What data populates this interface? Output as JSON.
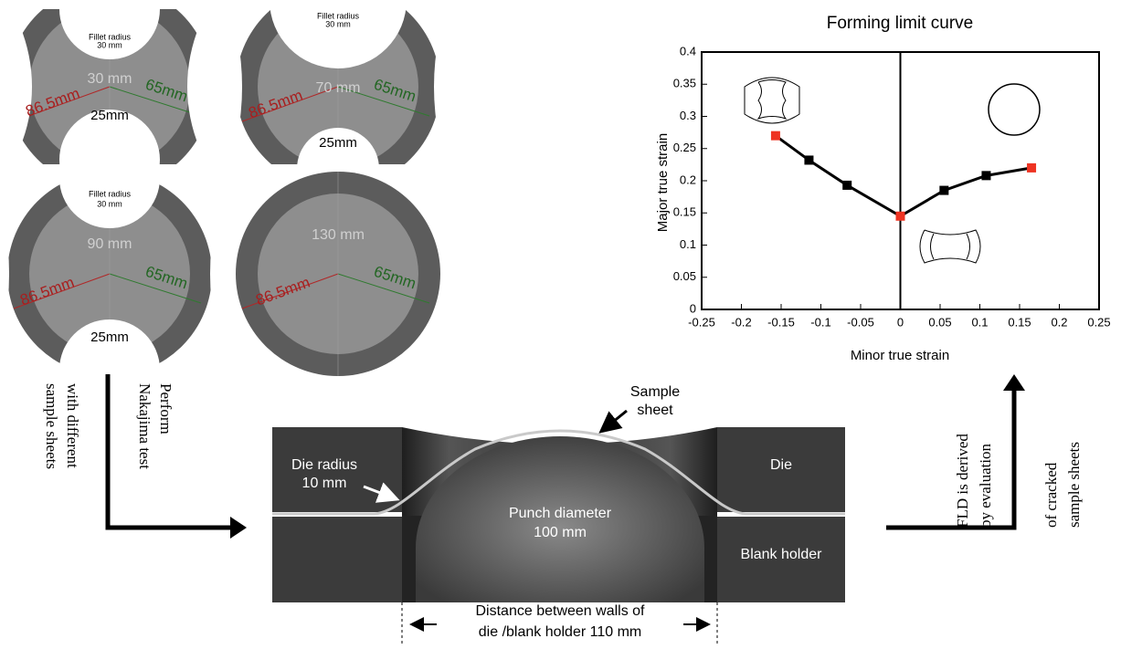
{
  "samples": [
    {
      "fillet": [
        "Fillet radius",
        "30 mm"
      ],
      "width": "30 mm",
      "left_radius": "86.5mm",
      "right_radius": "65mm",
      "bottom": "25mm"
    },
    {
      "fillet": [
        "Fillet radius",
        "30 mm"
      ],
      "width": "70 mm",
      "left_radius": "86.5mm",
      "right_radius": "65mm",
      "bottom": "25mm"
    },
    {
      "fillet": [
        "Fillet radius",
        "30 mm"
      ],
      "width": "90 mm",
      "left_radius": "86.5mm",
      "right_radius": "65mm",
      "bottom": "25mm"
    },
    {
      "width": "130 mm",
      "left_radius": "86.5mm",
      "right_radius": "65mm"
    }
  ],
  "test_step": [
    "Perform",
    "Nakajima test",
    "with different",
    "sample sheets"
  ],
  "press": {
    "sample_sheet": [
      "Sample",
      "sheet"
    ],
    "die_radius": [
      "Die radius",
      "10 mm"
    ],
    "punch": [
      "Punch diameter",
      "100 mm"
    ],
    "die": "Die",
    "blank_holder": "Blank holder",
    "distance": [
      "Distance between walls of",
      "die /blank holder 110 mm"
    ]
  },
  "evaluation_step": [
    "FLD is derived",
    "by evaluation",
    "of cracked",
    "sample sheets"
  ],
  "chart_data": {
    "type": "line",
    "title": "Forming limit curve",
    "x_label": "Minor true strain",
    "y_label": "Major true strain",
    "x": [
      -0.157,
      -0.115,
      -0.067,
      0,
      0.055,
      0.108,
      0.165
    ],
    "series": [
      {
        "color": "#000000",
        "marker_colors": [
          "#ee3322",
          "#000000",
          "#000000",
          "#ee3322",
          "#000000",
          "#000000",
          "#ee3322"
        ],
        "values": [
          0.27,
          0.232,
          0.193,
          0.145,
          0.185,
          0.208,
          0.22
        ]
      }
    ],
    "xlim": [
      -0.25,
      0.25
    ],
    "xticks": [
      -0.25,
      -0.2,
      -0.15,
      -0.1,
      -0.05,
      0,
      0.05,
      0.1,
      0.15,
      0.2,
      0.25
    ],
    "ylim": [
      0,
      0.4
    ],
    "yticks": [
      0,
      0.05,
      0.1,
      0.15,
      0.2,
      0.25,
      0.3,
      0.35,
      0.4
    ],
    "zero_line": true
  }
}
